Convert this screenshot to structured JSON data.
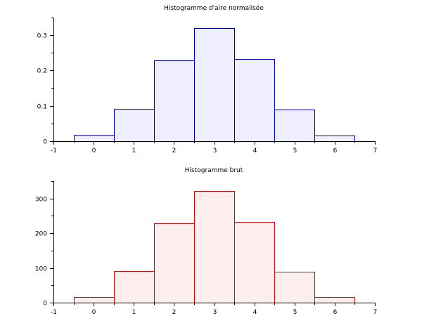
{
  "chart_data": [
    {
      "type": "bar",
      "title": "Histogramme d'aire normalisée",
      "xlabel": "",
      "ylabel": "",
      "bin_edges": [
        -0.5,
        0.5,
        1.5,
        2.5,
        3.5,
        4.5,
        5.5,
        6.5
      ],
      "values": [
        0.017,
        0.092,
        0.228,
        0.321,
        0.232,
        0.09,
        0.016
      ],
      "xlim": [
        -1,
        7
      ],
      "ylim": [
        0,
        0.35
      ],
      "xticks": [
        -1,
        0,
        1,
        2,
        3,
        4,
        5,
        6,
        7
      ],
      "xtick_labels": [
        "-1",
        "0",
        "1",
        "2",
        "3",
        "4",
        "5",
        "6",
        "7"
      ],
      "yticks": [
        0,
        0.1,
        0.2,
        0.3
      ],
      "ytick_labels": [
        "0",
        "0.1",
        "0.2",
        "0.3"
      ],
      "y_minor_step": 0.05,
      "x_minor_step": 0.5,
      "grid": false,
      "colors": {
        "stroke": "#0000aa",
        "fill": "#eeeefc"
      }
    },
    {
      "type": "bar",
      "title": "Histogramme brut",
      "xlabel": "",
      "ylabel": "",
      "bin_edges": [
        -0.5,
        0.5,
        1.5,
        2.5,
        3.5,
        4.5,
        5.5,
        6.5
      ],
      "values": [
        17,
        92,
        228,
        321,
        232,
        90,
        16
      ],
      "xlim": [
        -1,
        7
      ],
      "ylim": [
        0,
        350
      ],
      "xticks": [
        -1,
        0,
        1,
        2,
        3,
        4,
        5,
        6,
        7
      ],
      "xtick_labels": [
        "-1",
        "0",
        "1",
        "2",
        "3",
        "4",
        "5",
        "6",
        "7"
      ],
      "yticks": [
        0,
        100,
        200,
        300
      ],
      "ytick_labels": [
        "0",
        "100",
        "200",
        "300"
      ],
      "y_minor_step": 50,
      "x_minor_step": 0.5,
      "grid": false,
      "colors": {
        "stroke": "#bb1111",
        "fill": "#fdeeee"
      }
    }
  ]
}
